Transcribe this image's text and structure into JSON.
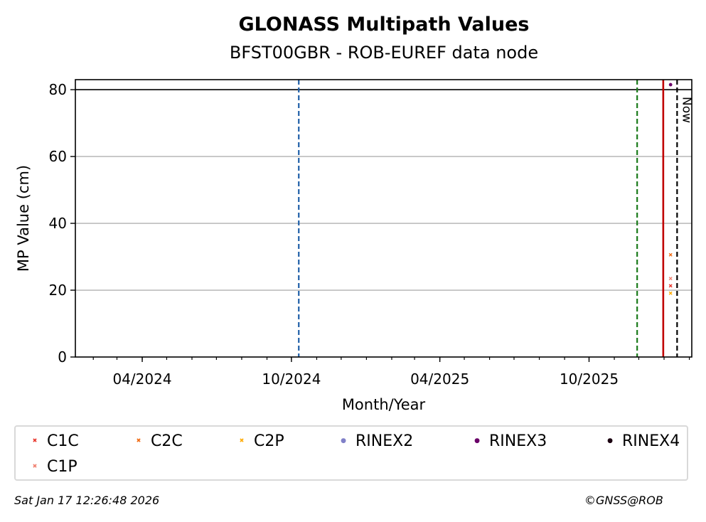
{
  "chart_data": {
    "type": "scatter",
    "title": "GLONASS Multipath Values",
    "subtitle": "BFST00GBR - ROB-EUREF data node",
    "xlabel": "Month/Year",
    "ylabel": "MP Value (cm)",
    "x_ticks": [
      "04/2024",
      "10/2024",
      "04/2025",
      "10/2025"
    ],
    "x_range": [
      "2024-01-10",
      "2026-02-04"
    ],
    "ylim": [
      0,
      83
    ],
    "y_ticks": [
      0,
      20,
      40,
      60,
      80
    ],
    "grid": "horizontal",
    "threshold_line": 80,
    "vertical_lines": [
      {
        "date": "2024-10-10",
        "style": "dashed",
        "color": "#1f5fa8"
      },
      {
        "date": "2025-11-29",
        "style": "dashed",
        "color": "#1a7a1a"
      },
      {
        "date": "2025-12-31",
        "style": "solid",
        "color": "#c00000"
      },
      {
        "date": "2026-01-17",
        "style": "dashed",
        "color": "#000000",
        "label": "Now"
      }
    ],
    "series": [
      {
        "name": "C1C",
        "marker": "x",
        "color": "#e8352b",
        "points": [
          {
            "x": "2026-01-09",
            "y": 21.3
          }
        ]
      },
      {
        "name": "C2C",
        "marker": "x",
        "color": "#f06a12",
        "points": [
          {
            "x": "2026-01-09",
            "y": 30.6
          }
        ]
      },
      {
        "name": "C2P",
        "marker": "x",
        "color": "#ffaa00",
        "points": [
          {
            "x": "2026-01-09",
            "y": 19.1
          }
        ]
      },
      {
        "name": "RINEX2",
        "marker": "dot",
        "color": "#8080c8",
        "points": []
      },
      {
        "name": "RINEX3",
        "marker": "dot",
        "color": "#6a0068",
        "points": [
          {
            "x": "2026-01-09",
            "y": 81.5
          }
        ]
      },
      {
        "name": "RINEX4",
        "marker": "dot",
        "color": "#1a0010",
        "points": []
      },
      {
        "name": "C1P",
        "marker": "x",
        "color": "#f08070",
        "points": [
          {
            "x": "2026-01-09",
            "y": 23.5
          }
        ]
      }
    ]
  },
  "footer": {
    "timestamp": "Sat Jan 17 12:26:48 2026",
    "credit": "©GNSS@ROB"
  }
}
